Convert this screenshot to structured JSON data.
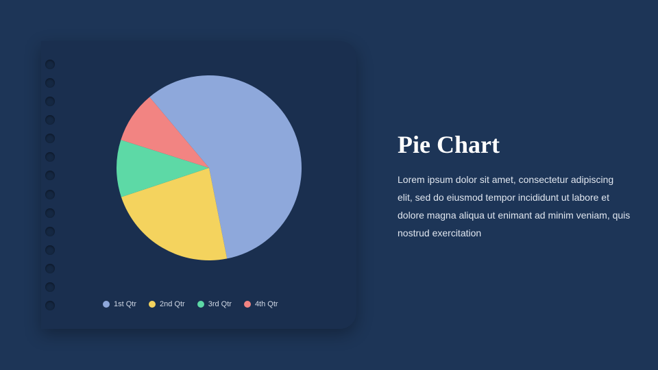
{
  "page": {
    "background_color": "#1d3557"
  },
  "card": {
    "background_color": "#1a2f4f",
    "hole_color": "#152843",
    "hole_count": 14
  },
  "chart": {
    "type": "pie",
    "slices": [
      {
        "label": "1st Qtr",
        "value": 58,
        "color": "#8ea8db"
      },
      {
        "label": "2nd Qtr",
        "value": 23,
        "color": "#f4d35e"
      },
      {
        "label": "3rd Qtr",
        "value": 10,
        "color": "#5dd9a6"
      },
      {
        "label": "4th Qtr",
        "value": 9,
        "color": "#f28482"
      }
    ],
    "start_angle": -40,
    "radius": 135
  },
  "legend": {
    "items": [
      {
        "label": "1st Qtr",
        "color": "#8ea8db"
      },
      {
        "label": "2nd Qtr",
        "color": "#f4d35e"
      },
      {
        "label": "3rd Qtr",
        "color": "#5dd9a6"
      },
      {
        "label": "4th Qtr",
        "color": "#f28482"
      }
    ],
    "font_size": 11,
    "text_color": "#d0d8e5"
  },
  "text": {
    "title": "Pie Chart",
    "title_fontsize": 36,
    "title_color": "#ffffff",
    "body": "Lorem ipsum dolor sit amet, consectetur adipiscing elit, sed do eiusmod tempor incididunt ut labore et dolore magna aliqua ut enimant ad minim veniam, quis nostrud exercitation",
    "body_fontsize": 14,
    "body_color": "#e0e6ef"
  }
}
